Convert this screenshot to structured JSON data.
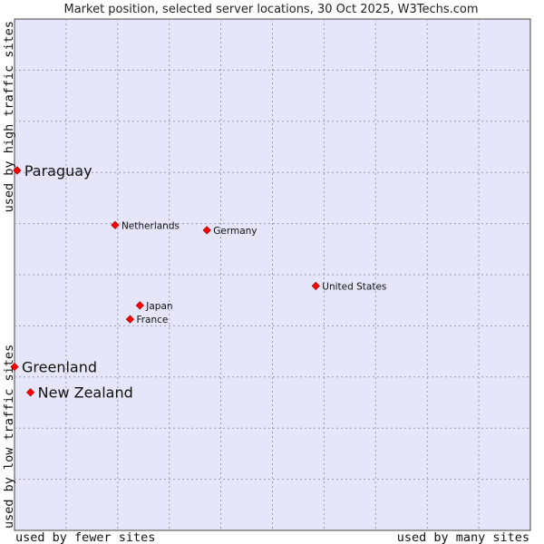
{
  "chart_data": {
    "type": "scatter",
    "title": "Market position, selected server locations, 30 Oct 2025, W3Techs.com",
    "xlabel_low": "used by fewer sites",
    "xlabel_high": "used by many sites",
    "ylabel_low": "used by low traffic sites",
    "ylabel_high": "used by high traffic sites",
    "xlim": [
      0,
      1
    ],
    "ylim": [
      0,
      1
    ],
    "grid": true,
    "point_color": "#ff0000",
    "plot_background": "#e6e6fa",
    "points": [
      {
        "name": "Paraguay",
        "x": 0.005,
        "y": 0.704,
        "emphasis": "large"
      },
      {
        "name": "Netherlands",
        "x": 0.195,
        "y": 0.597,
        "emphasis": "small"
      },
      {
        "name": "Germany",
        "x": 0.373,
        "y": 0.587,
        "emphasis": "small"
      },
      {
        "name": "United States",
        "x": 0.584,
        "y": 0.478,
        "emphasis": "small"
      },
      {
        "name": "Japan",
        "x": 0.243,
        "y": 0.44,
        "emphasis": "small"
      },
      {
        "name": "France",
        "x": 0.224,
        "y": 0.413,
        "emphasis": "small"
      },
      {
        "name": "Greenland",
        "x": 0.0,
        "y": 0.32,
        "emphasis": "large"
      },
      {
        "name": "New Zealand",
        "x": 0.031,
        "y": 0.27,
        "emphasis": "large"
      }
    ]
  }
}
